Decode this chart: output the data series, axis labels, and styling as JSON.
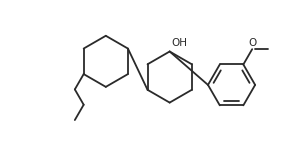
{
  "bg_color": "#ffffff",
  "line_color": "#2a2a2a",
  "line_width": 1.3,
  "font_size": 7.5,
  "figsize": [
    3.01,
    1.59
  ],
  "dpi": 100,
  "xlim": [
    0,
    301
  ],
  "ylim": [
    0,
    159
  ]
}
